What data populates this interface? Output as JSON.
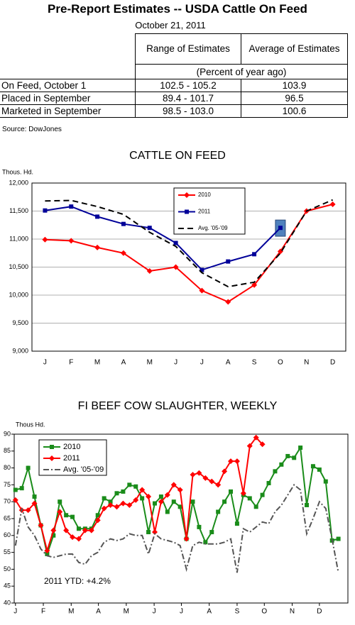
{
  "header": {
    "title": "Pre-Report Estimates -- USDA Cattle On Feed",
    "subtitle": "October 21, 2011"
  },
  "table": {
    "columns": [
      "Range of Estimates",
      "Average of Estimates"
    ],
    "unit_note": "(Percent of year ago)",
    "rows": [
      [
        "On Feed, October 1",
        "102.5 - 105.2",
        103.9
      ],
      [
        "Placed in September",
        "89.4 - 101.7",
        96.5
      ],
      [
        "Marketed in September",
        "98.5 - 103.0",
        100.6
      ]
    ]
  },
  "source": "Source:  DowJones",
  "chart_data": [
    {
      "type": "line",
      "title": "CATTLE ON FEED",
      "y_label": "Thous. Hd.",
      "categories": [
        "J",
        "F",
        "M",
        "A",
        "M",
        "J",
        "J",
        "A",
        "S",
        "O",
        "N",
        "D"
      ],
      "series": [
        {
          "name": "2010",
          "color": "#ff0000",
          "marker": "diamond",
          "values": [
            10990,
            10970,
            10850,
            10750,
            10430,
            10500,
            10080,
            9880,
            10180,
            10780,
            11500,
            11620
          ]
        },
        {
          "name": "2011",
          "color": "#000099",
          "marker": "square",
          "values": [
            11510,
            11580,
            11400,
            11270,
            11200,
            10930,
            10450,
            10600,
            10730,
            11200,
            null,
            null
          ]
        },
        {
          "name": "Avg. '05-'09",
          "color": "#000000",
          "dash": "8,5",
          "values": [
            11680,
            11690,
            11580,
            11440,
            11120,
            10870,
            10400,
            10150,
            10230,
            10750,
            11500,
            11700
          ]
        }
      ],
      "estimate_range": {
        "category": "O",
        "low": 11050,
        "high": 11340,
        "color": "#4f81bd"
      },
      "ylim": [
        9000,
        12000
      ],
      "yticks": [
        {
          "value": 9000,
          "label": "9,000"
        },
        {
          "value": 9500,
          "label": "9,500"
        },
        {
          "value": 10000,
          "label": "10,000"
        },
        {
          "value": 10500,
          "label": "10,500"
        },
        {
          "value": 11000,
          "label": "11,000"
        },
        {
          "value": 11500,
          "label": "11,500"
        },
        {
          "value": 12000,
          "label": "12,000"
        }
      ],
      "grid": true
    },
    {
      "type": "line",
      "title": "FI BEEF COW SLAUGHTER, WEEKLY",
      "y_label": "Thous Hd.",
      "x": [
        1,
        2,
        3,
        4,
        5,
        6,
        7,
        8,
        9,
        10,
        11,
        12,
        13,
        14,
        15,
        16,
        17,
        18,
        19,
        20,
        21,
        22,
        23,
        24,
        25,
        26,
        27,
        28,
        29,
        30,
        31,
        32,
        33,
        34,
        35,
        36,
        37,
        38,
        39,
        40,
        41,
        42,
        43,
        44,
        45,
        46,
        47,
        48,
        49,
        50,
        51,
        52
      ],
      "series": [
        {
          "name": "2010",
          "color": "#1a8c1a",
          "marker": "square",
          "values": [
            73.5,
            74,
            80,
            71.5,
            63,
            54.5,
            60,
            70,
            66,
            65.5,
            62,
            62,
            62,
            66,
            71,
            70,
            72.5,
            73,
            75,
            74.5,
            71,
            61,
            69.5,
            71.5,
            67,
            70,
            68.5,
            59,
            70,
            62.5,
            58,
            61,
            67,
            70,
            73,
            63.5,
            72,
            71,
            68.5,
            72,
            75.5,
            79,
            81,
            83.5,
            83,
            86,
            69,
            80.5,
            79.5,
            76,
            58.5,
            59
          ]
        },
        {
          "name": "2011",
          "color": "#ff0000",
          "marker": "diamond",
          "values": [
            70.5,
            67.5,
            67.5,
            69.5,
            63,
            55.5,
            61.5,
            67,
            61.5,
            59.5,
            59,
            61.5,
            61.5,
            64.5,
            68,
            69,
            68.5,
            69.5,
            69,
            70.5,
            73.5,
            71.5,
            61,
            70,
            72,
            75,
            73.5,
            59,
            78,
            78.5,
            77,
            76,
            75,
            79,
            82,
            82,
            72.5,
            86.5,
            89,
            87,
            null,
            null,
            null,
            null,
            null,
            null,
            null,
            null,
            null,
            null,
            null,
            null
          ]
        },
        {
          "name": "Avg. '05-'09",
          "color": "#555555",
          "dash": "8,3,2,3",
          "values": [
            57,
            68,
            62.5,
            60,
            56,
            54,
            53.5,
            54,
            54.5,
            54.5,
            52,
            51.5,
            54,
            55,
            58,
            59,
            58.5,
            59,
            60.5,
            60,
            60,
            54.5,
            60.5,
            59,
            58.5,
            58,
            57,
            50,
            57,
            58,
            57.5,
            57.5,
            57.5,
            58,
            59,
            49,
            62,
            61,
            62.5,
            64,
            63.5,
            67,
            69,
            72,
            75,
            73.5,
            60.5,
            65,
            70,
            68,
            59,
            49
          ]
        }
      ],
      "annotation": "2011 YTD: +4.2%",
      "xlim": [
        0.8,
        53.5
      ],
      "xticks": [
        {
          "value": 1,
          "label": "J"
        },
        {
          "value": 5.4,
          "label": "F"
        },
        {
          "value": 9.8,
          "label": "M"
        },
        {
          "value": 14.1,
          "label": "A"
        },
        {
          "value": 18.5,
          "label": "M"
        },
        {
          "value": 22.9,
          "label": "J"
        },
        {
          "value": 27.2,
          "label": "J"
        },
        {
          "value": 31.6,
          "label": "A"
        },
        {
          "value": 36,
          "label": "S"
        },
        {
          "value": 40.3,
          "label": "O"
        },
        {
          "value": 44.7,
          "label": "N"
        },
        {
          "value": 49,
          "label": "D"
        }
      ],
      "ylim": [
        40,
        90
      ],
      "yticks": [
        40,
        45,
        50,
        55,
        60,
        65,
        70,
        75,
        80,
        85,
        90
      ],
      "grid": false
    }
  ]
}
